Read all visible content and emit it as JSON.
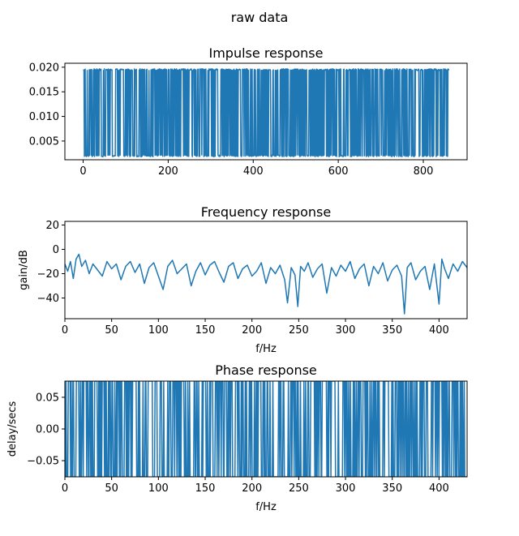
{
  "figure": {
    "suptitle": "raw data",
    "line_color": "#1f77b4"
  },
  "chart_data": [
    {
      "type": "line",
      "title": "Impulse response",
      "xlabel": "",
      "ylabel": "",
      "xlim": [
        -43,
        903
      ],
      "ylim": [
        0.0012,
        0.0208
      ],
      "xticks": [
        0,
        200,
        400,
        600,
        800
      ],
      "xtick_labels": [
        "0",
        "200",
        "400",
        "600",
        "800"
      ],
      "yticks": [
        0.005,
        0.01,
        0.015,
        0.02
      ],
      "ytick_labels": [
        "0.005",
        "0.010",
        "0.015",
        "0.020"
      ],
      "grid": false,
      "series": [
        {
          "description": "noisy signal over sample index 0–860 alternating between about 0.002 and 0.0195",
          "x_range": [
            0,
            860
          ],
          "low": 0.002,
          "high": 0.0195
        }
      ]
    },
    {
      "type": "line",
      "title": "Frequency response",
      "xlabel": "f/Hz",
      "ylabel": "gain/dB",
      "xlim": [
        0,
        430
      ],
      "ylim": [
        -57,
        23
      ],
      "xticks": [
        0,
        50,
        100,
        150,
        200,
        250,
        300,
        350,
        400
      ],
      "xtick_labels": [
        "0",
        "50",
        "100",
        "150",
        "200",
        "250",
        "300",
        "350",
        "400"
      ],
      "yticks": [
        20,
        0,
        -20,
        -40
      ],
      "ytick_labels": [
        "20",
        "0",
        "−20",
        "−40"
      ],
      "grid": false,
      "series": [
        {
          "x": [
            0,
            3,
            6,
            9,
            12,
            15,
            18,
            22,
            26,
            30,
            35,
            40,
            45,
            50,
            55,
            60,
            65,
            70,
            75,
            80,
            85,
            90,
            95,
            100,
            105,
            110,
            115,
            120,
            125,
            130,
            135,
            140,
            145,
            150,
            155,
            160,
            165,
            170,
            175,
            180,
            185,
            190,
            195,
            200,
            205,
            210,
            215,
            220,
            225,
            230,
            235,
            238,
            242,
            246,
            249,
            252,
            256,
            260,
            265,
            270,
            275,
            280,
            285,
            290,
            295,
            300,
            305,
            310,
            315,
            320,
            325,
            330,
            335,
            340,
            345,
            350,
            355,
            360,
            363,
            366,
            370,
            375,
            380,
            385,
            390,
            395,
            400,
            403,
            406,
            410,
            415,
            420,
            425,
            430
          ],
          "y": [
            -12,
            -18,
            -10,
            -24,
            -8,
            -4,
            -14,
            -9,
            -20,
            -12,
            -17,
            -22,
            -10,
            -16,
            -12,
            -25,
            -14,
            -10,
            -19,
            -12,
            -28,
            -15,
            -11,
            -22,
            -33,
            -14,
            -9,
            -20,
            -16,
            -12,
            -30,
            -18,
            -11,
            -21,
            -13,
            -10,
            -19,
            -27,
            -14,
            -11,
            -24,
            -16,
            -13,
            -22,
            -18,
            -11,
            -28,
            -15,
            -20,
            -13,
            -25,
            -44,
            -15,
            -21,
            -47,
            -14,
            -18,
            -11,
            -23,
            -16,
            -12,
            -36,
            -15,
            -22,
            -13,
            -18,
            -10,
            -24,
            -16,
            -12,
            -30,
            -14,
            -20,
            -11,
            -26,
            -17,
            -13,
            -22,
            -53,
            -15,
            -11,
            -25,
            -18,
            -14,
            -33,
            -12,
            -45,
            -8,
            -16,
            -24,
            -12,
            -18,
            -10,
            -15
          ]
        }
      ]
    },
    {
      "type": "line",
      "title": "Phase response",
      "xlabel": "f/Hz",
      "ylabel": "delay/secs",
      "xlim": [
        0,
        430
      ],
      "ylim": [
        -0.0755,
        0.0755
      ],
      "xticks": [
        0,
        50,
        100,
        150,
        200,
        250,
        300,
        350,
        400
      ],
      "xtick_labels": [
        "0",
        "50",
        "100",
        "150",
        "200",
        "250",
        "300",
        "350",
        "400"
      ],
      "yticks": [
        0.05,
        0.0,
        -0.05
      ],
      "ytick_labels": [
        "0.05",
        "0.00",
        "−0.05"
      ],
      "grid": false,
      "series": [
        {
          "description": "rapidly alternating delay signal spanning the full axis range",
          "x_range": [
            0,
            430
          ],
          "low": -0.0755,
          "high": 0.0755
        }
      ]
    }
  ]
}
